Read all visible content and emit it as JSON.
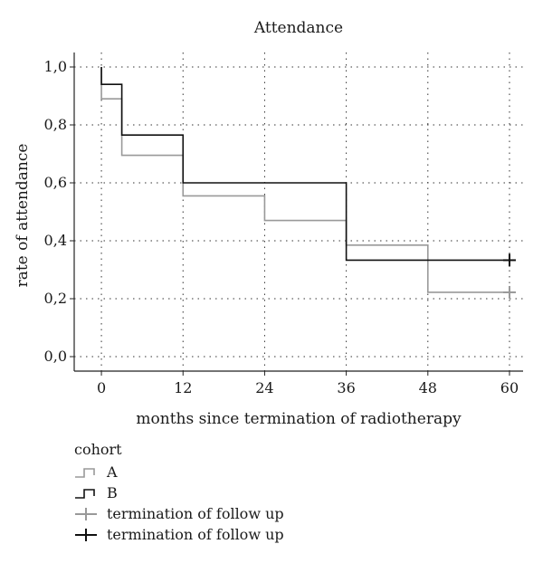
{
  "chart_data": {
    "type": "line",
    "title": "Attendance",
    "xlabel": "months since termination of radiotherapy",
    "ylabel": "rate of attendance",
    "xlim": [
      -4,
      62
    ],
    "ylim": [
      -0.05,
      1.05
    ],
    "x_ticks": [
      0,
      12,
      24,
      36,
      48,
      60
    ],
    "x_tick_labels": [
      "0",
      "12",
      "24",
      "36",
      "48",
      "60"
    ],
    "y_ticks": [
      0,
      0.2,
      0.4,
      0.6,
      0.8,
      1.0
    ],
    "y_tick_labels": [
      "0,0",
      "0,2",
      "0,4",
      "0,6",
      "0,8",
      "1,0"
    ],
    "grid": true,
    "legend_position": "bottom-left",
    "series": [
      {
        "name": "A",
        "color": "#999999",
        "step": true,
        "x": [
          0,
          0,
          3,
          12,
          24,
          36,
          48,
          60
        ],
        "y": [
          1.0,
          0.89,
          0.695,
          0.555,
          0.47,
          0.385,
          0.222,
          0.222
        ],
        "censor": {
          "x": 60,
          "y": 0.222
        }
      },
      {
        "name": "B",
        "color": "#111111",
        "step": true,
        "x": [
          0,
          0,
          3,
          12,
          36,
          60
        ],
        "y": [
          1.0,
          0.94,
          0.765,
          0.6,
          0.333,
          0.333
        ],
        "censor": {
          "x": 60,
          "y": 0.333
        }
      }
    ]
  },
  "legend": {
    "title": "cohort",
    "items": [
      {
        "label": "A",
        "kind": "step",
        "color": "#999999"
      },
      {
        "label": "B",
        "kind": "step",
        "color": "#111111"
      },
      {
        "label": "termination of follow up",
        "kind": "cross",
        "color": "#999999"
      },
      {
        "label": "termination of follow up",
        "kind": "cross",
        "color": "#111111"
      }
    ]
  }
}
